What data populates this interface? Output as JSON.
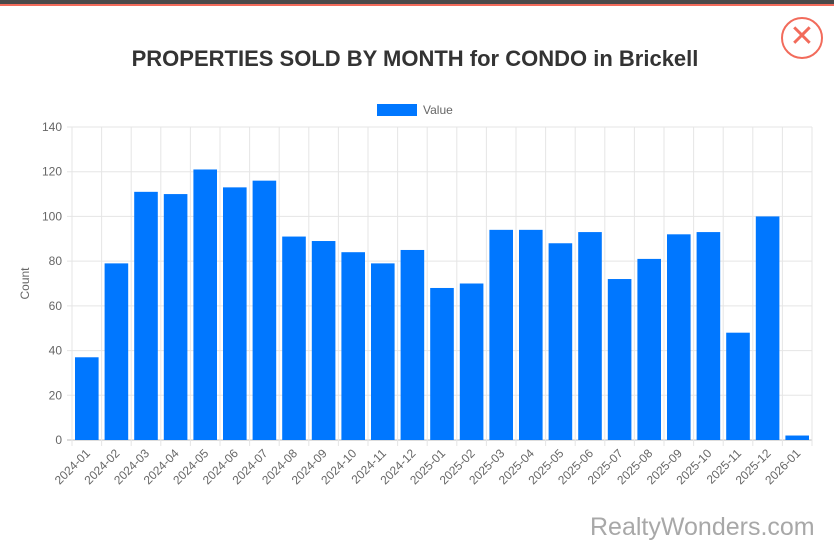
{
  "modal": {
    "title": "PROPERTIES SOLD BY MONTH for CONDO in Brickell",
    "close_label": "✕",
    "watermark": "RealtyWonders.com"
  },
  "colors": {
    "bar": "#0077ff",
    "accent": "#f26b5b"
  },
  "chart_data": {
    "type": "bar",
    "title": "PROPERTIES SOLD BY MONTH for CONDO in Brickell",
    "xlabel": "",
    "ylabel": "Count",
    "ylim": [
      0,
      140
    ],
    "yticks": [
      0,
      20,
      40,
      60,
      80,
      100,
      120,
      140
    ],
    "grid": true,
    "legend": "top",
    "categories": [
      "2024-01",
      "2024-02",
      "2024-03",
      "2024-04",
      "2024-05",
      "2024-06",
      "2024-07",
      "2024-08",
      "2024-09",
      "2024-10",
      "2024-11",
      "2024-12",
      "2025-01",
      "2025-02",
      "2025-03",
      "2025-04",
      "2025-05",
      "2025-06",
      "2025-07",
      "2025-08",
      "2025-09",
      "2025-10",
      "2025-11",
      "2025-12",
      "2026-01"
    ],
    "series": [
      {
        "name": "Value",
        "values": [
          37,
          79,
          111,
          110,
          121,
          113,
          116,
          91,
          89,
          84,
          79,
          85,
          68,
          70,
          94,
          94,
          88,
          93,
          72,
          81,
          92,
          93,
          48,
          100,
          2
        ]
      }
    ]
  }
}
